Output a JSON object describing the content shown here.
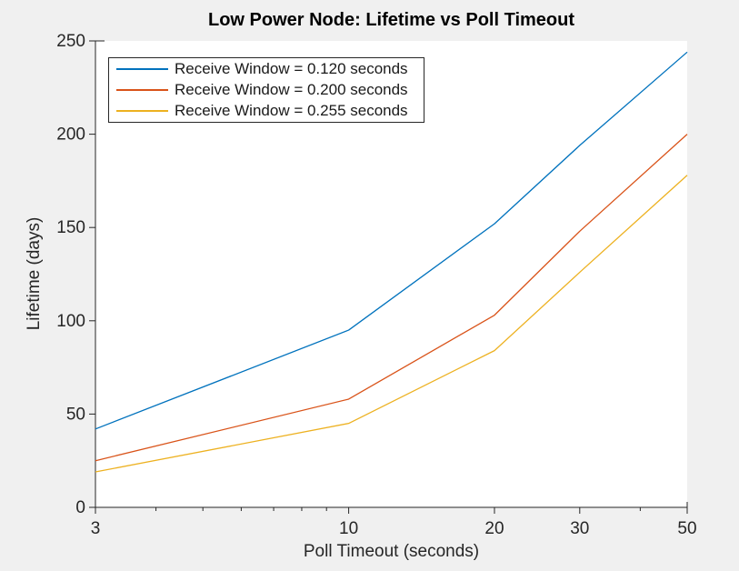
{
  "figure": {
    "background": "#f0f0f0",
    "plot_background": "#ffffff",
    "axis_color": "#262626",
    "title_color": "#000000"
  },
  "chart_data": {
    "type": "line",
    "title": "Low Power Node: Lifetime vs Poll Timeout",
    "xlabel": "Poll Timeout (seconds)",
    "ylabel": "Lifetime (days)",
    "x_scale": "log",
    "xlim": [
      3,
      50
    ],
    "ylim": [
      0,
      250
    ],
    "grid": false,
    "legend_position": "top-left",
    "x": [
      3,
      10,
      20,
      30,
      50
    ],
    "x_ticks": [
      3,
      10,
      20,
      30,
      50
    ],
    "x_minor_ticks": [
      4,
      5,
      6,
      7,
      8,
      9,
      40
    ],
    "y_ticks": [
      0,
      50,
      100,
      150,
      200,
      250
    ],
    "series": [
      {
        "name": "Receive Window = 0.120 seconds",
        "color": "#0072BD",
        "values": [
          42,
          95,
          152,
          194,
          244
        ]
      },
      {
        "name": "Receive Window = 0.200 seconds",
        "color": "#D95319",
        "values": [
          25,
          58,
          103,
          148,
          200
        ]
      },
      {
        "name": "Receive Window = 0.255 seconds",
        "color": "#EDB120",
        "values": [
          19,
          45,
          84,
          126,
          178
        ]
      }
    ]
  }
}
